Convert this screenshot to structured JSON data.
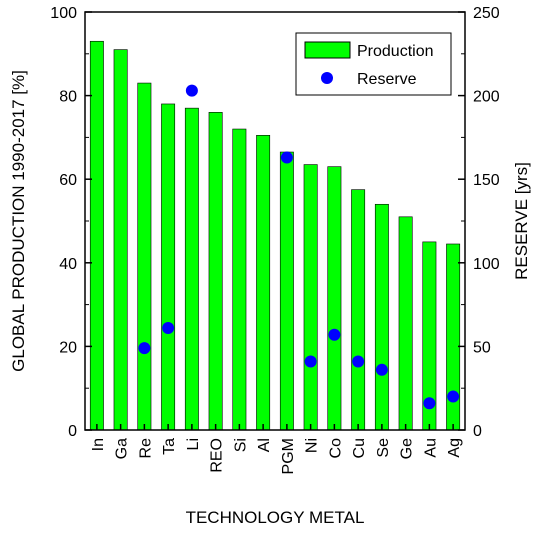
{
  "chart_data": {
    "type": "bar",
    "categories": [
      "In",
      "Ga",
      "Re",
      "Ta",
      "Li",
      "REO",
      "Si",
      "Al",
      "PGM",
      "Ni",
      "Co",
      "Cu",
      "Se",
      "Ge",
      "Au",
      "Ag"
    ],
    "series": [
      {
        "name": "Production",
        "type": "bar",
        "axis": "left",
        "color": "#00ff00",
        "values": [
          93,
          91,
          83,
          78,
          77,
          76,
          72,
          70.5,
          66.5,
          63.5,
          63,
          57.5,
          54,
          51,
          45,
          44.5
        ]
      },
      {
        "name": "Reserve",
        "type": "scatter",
        "axis": "right",
        "color": "#0000ff",
        "values": [
          null,
          null,
          49,
          61,
          203,
          null,
          null,
          null,
          163,
          41,
          57,
          41,
          36,
          null,
          16,
          20
        ]
      }
    ],
    "xlabel": "TECHNOLOGY METAL",
    "ylabel": "GLOBAL PRODUCTION 1990-2017 [%]",
    "y2label": "RESERVE [yrs]",
    "ylim": [
      0,
      100
    ],
    "y2lim": [
      0,
      250
    ],
    "yticks": [
      "0",
      "20",
      "40",
      "60",
      "80",
      "100"
    ],
    "y2ticks": [
      "0",
      "50",
      "100",
      "150",
      "200",
      "250"
    ],
    "grid": false,
    "legend_position": "top-right"
  }
}
